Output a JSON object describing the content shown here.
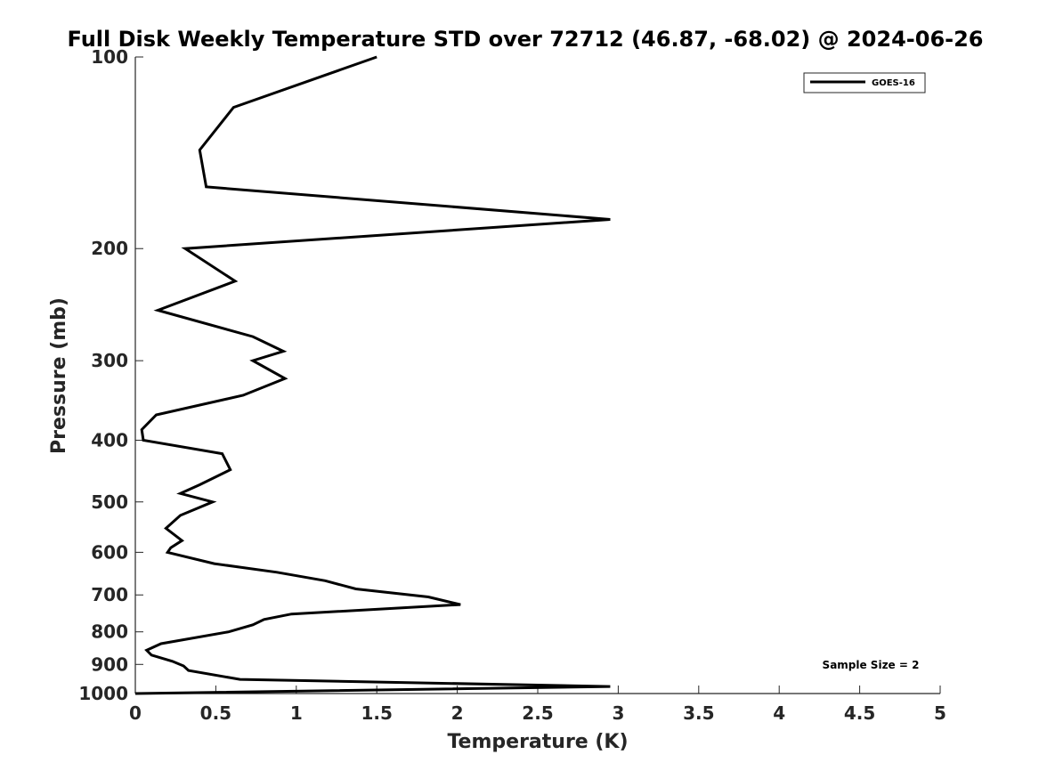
{
  "chart_data": {
    "type": "line",
    "title": "Full Disk Weekly Temperature STD over 72712 (46.87, -68.02) @ 2024-06-26",
    "xlabel": "Temperature (K)",
    "ylabel": "Pressure (mb)",
    "xlim": [
      0,
      5
    ],
    "ylim": [
      100,
      1000
    ],
    "y_scale": "log",
    "y_reversed": true,
    "x_ticks": [
      "0",
      "0.5",
      "1",
      "1.5",
      "2",
      "2.5",
      "3",
      "3.5",
      "4",
      "4.5",
      "5"
    ],
    "y_ticks": [
      "100",
      "200",
      "300",
      "400",
      "500",
      "600",
      "700",
      "800",
      "900",
      "1000"
    ],
    "grid": false,
    "legend_position": "top-right",
    "annotation": "Sample Size = 2",
    "line_color": "#000000",
    "series": [
      {
        "name": "GOES-16",
        "x": [
          1.5,
          0.61,
          0.4,
          0.44,
          2.95,
          0.31,
          0.62,
          0.14,
          0.73,
          0.92,
          0.73,
          0.93,
          0.67,
          0.13,
          0.04,
          0.05,
          0.54,
          0.59,
          0.4,
          0.28,
          0.48,
          0.28,
          0.19,
          0.29,
          0.22,
          0.2,
          0.49,
          0.88,
          1.18,
          1.37,
          1.82,
          2.02,
          0.97,
          0.8,
          0.73,
          0.58,
          0.16,
          0.07,
          0.1,
          0.23,
          0.3,
          0.33,
          0.65,
          2.95,
          0.0
        ],
        "y": [
          100,
          120,
          140,
          160,
          180,
          200,
          225,
          250,
          275,
          290,
          300,
          320,
          340,
          365,
          385,
          400,
          420,
          445,
          470,
          485,
          500,
          525,
          550,
          575,
          590,
          600,
          625,
          645,
          665,
          685,
          705,
          725,
          750,
          765,
          780,
          800,
          835,
          855,
          870,
          890,
          905,
          920,
          950,
          975,
          1000
        ]
      }
    ]
  }
}
